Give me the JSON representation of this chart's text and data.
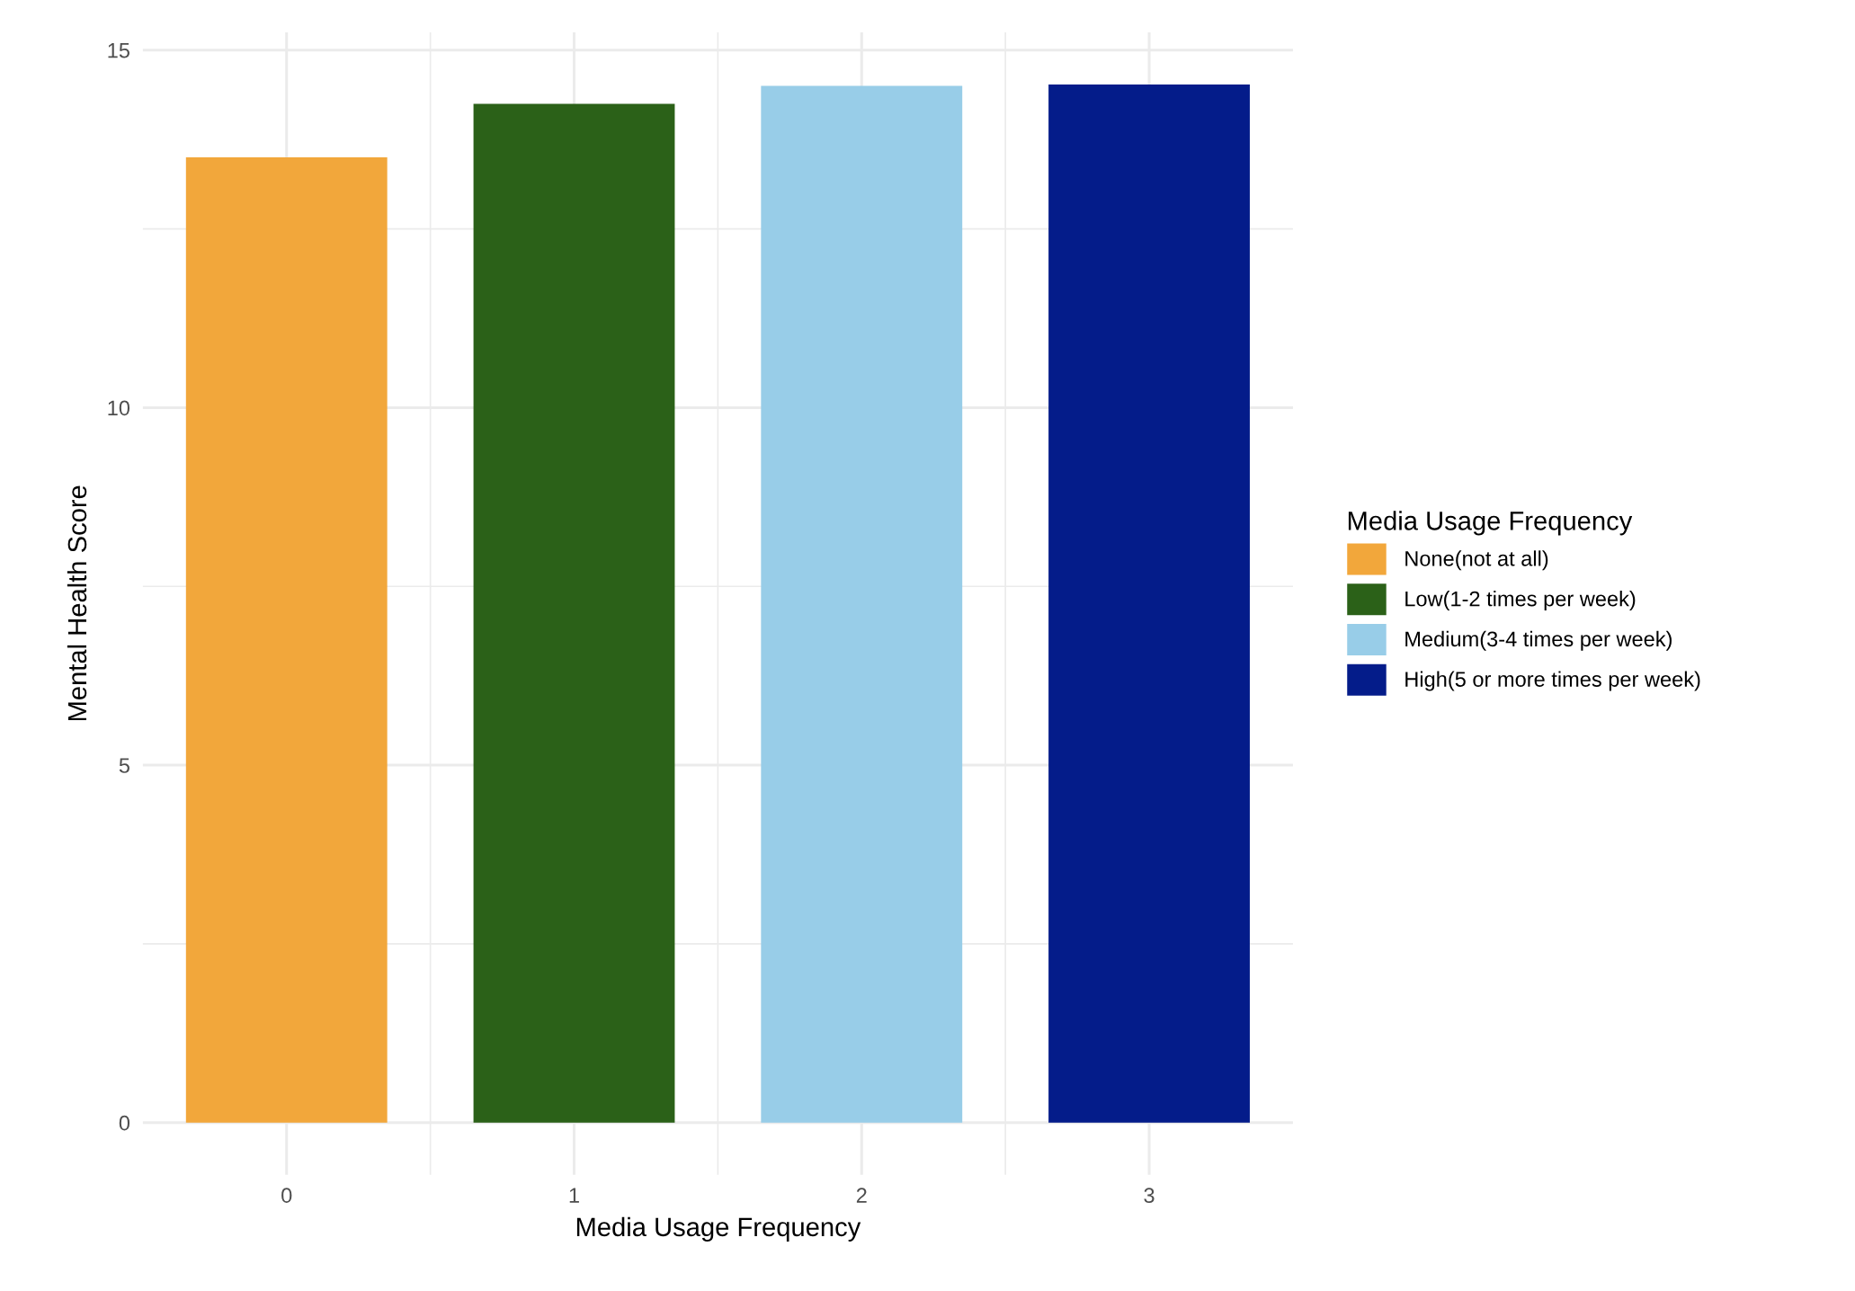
{
  "chart_data": {
    "type": "bar",
    "xlabel": "Media Usage Frequency",
    "ylabel": "Mental Health Score",
    "legend_title": "Media Usage Frequency",
    "categories": [
      "0",
      "1",
      "2",
      "3"
    ],
    "series": [
      {
        "name": "None(not at all)",
        "color": "#f2a73b",
        "values": [
          13.5,
          null,
          null,
          null
        ]
      },
      {
        "name": "Low(1-2 times per week)",
        "color": "#2b6118",
        "values": [
          null,
          14.25,
          null,
          null
        ]
      },
      {
        "name": "Medium(3-4 times per week)",
        "color": "#98cde8",
        "values": [
          null,
          null,
          14.5,
          null
        ]
      },
      {
        "name": "High(5 or more times per week)",
        "color": "#041c8a",
        "values": [
          null,
          null,
          null,
          14.52
        ]
      }
    ],
    "ylim": [
      -0.73,
      15.25
    ],
    "yticks": [
      0,
      5,
      10,
      15
    ],
    "grid": true,
    "legend": "right"
  }
}
